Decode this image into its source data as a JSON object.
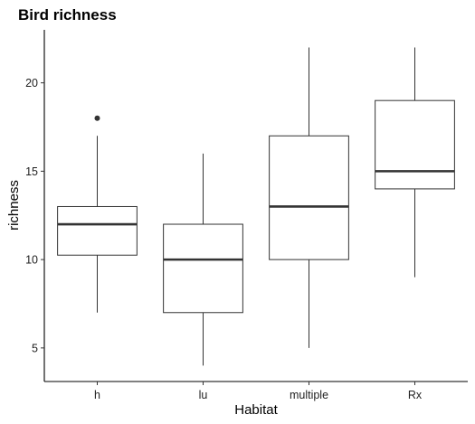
{
  "chart_data": {
    "type": "boxplot",
    "title": "Bird richness",
    "xlabel": "Habitat",
    "ylabel": "richness",
    "categories": [
      "h",
      "lu",
      "multiple",
      "Rx"
    ],
    "ylim": [
      3.1,
      23
    ],
    "yticks": [
      5,
      10,
      15,
      20
    ],
    "grid": false,
    "legend": "none",
    "boxes": [
      {
        "category": "h",
        "whisker_low": 7,
        "q1": 10.25,
        "median": 12,
        "q3": 13,
        "whisker_high": 17,
        "outliers": [
          18
        ]
      },
      {
        "category": "lu",
        "whisker_low": 4,
        "q1": 7,
        "median": 10,
        "q3": 12,
        "whisker_high": 16,
        "outliers": []
      },
      {
        "category": "multiple",
        "whisker_low": 5,
        "q1": 10,
        "median": 13,
        "q3": 17,
        "whisker_high": 22,
        "outliers": []
      },
      {
        "category": "Rx",
        "whisker_low": 9,
        "q1": 14,
        "median": 15,
        "q3": 19,
        "whisker_high": 22,
        "outliers": []
      }
    ]
  }
}
